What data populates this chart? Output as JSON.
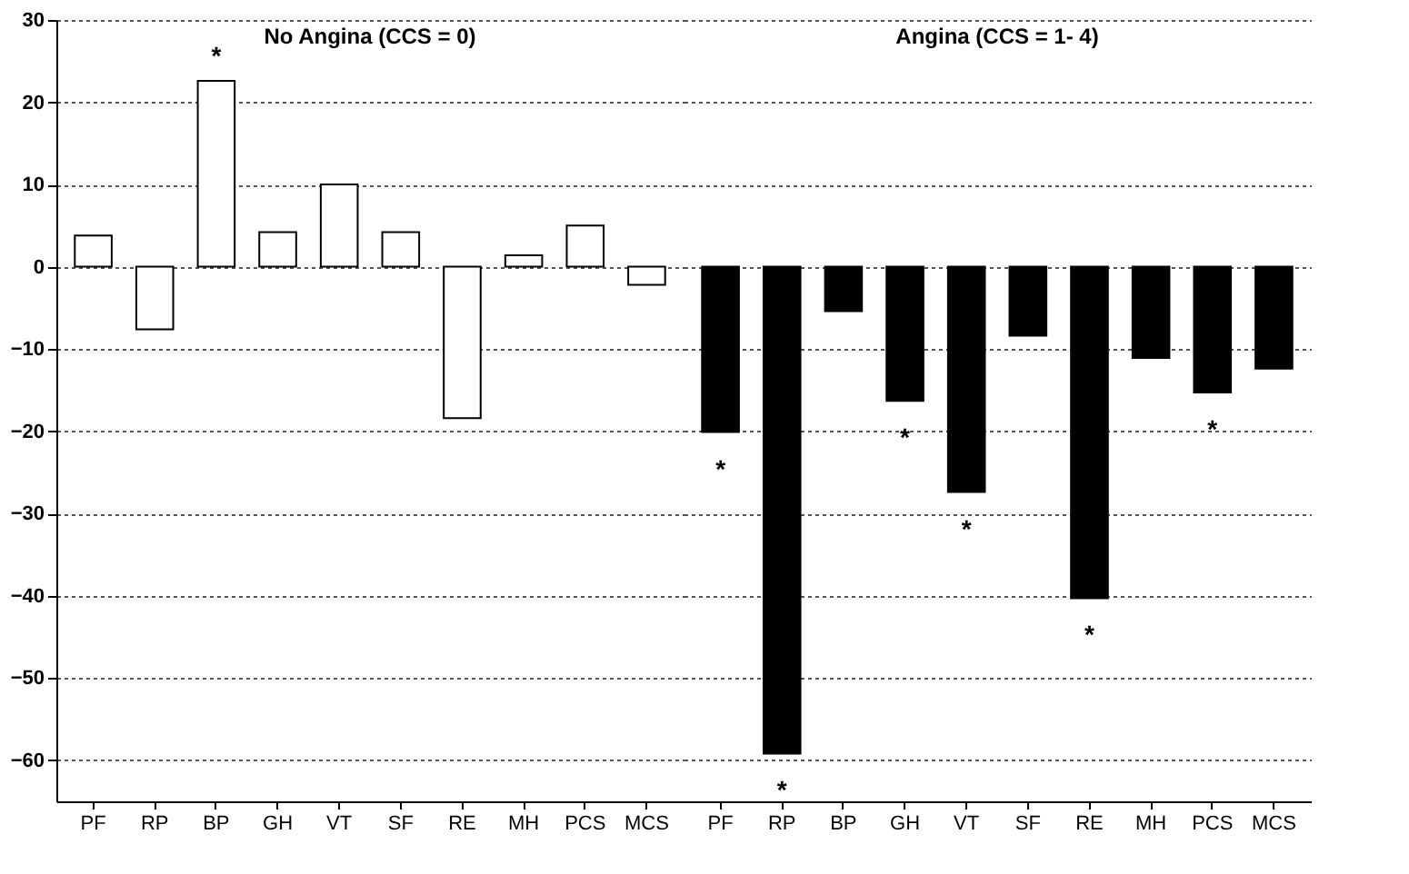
{
  "chart_data": [
    {
      "type": "bar",
      "title": "No Angina (CCS = 0)",
      "categories": [
        "PF",
        "RP",
        "BP",
        "GH",
        "VT",
        "SF",
        "RE",
        "MH",
        "PCS",
        "MCS"
      ],
      "series": [
        {
          "color": "#ffffff",
          "values": [
            3.8,
            -7.6,
            22.6,
            4.2,
            10,
            4.2,
            -18.4,
            1.4,
            5,
            -2.2
          ]
        }
      ],
      "ylim": [
        -65,
        30
      ],
      "yticks": [
        -60,
        -50,
        -40,
        -30,
        -20,
        -10,
        0,
        10,
        20,
        30
      ],
      "grid": "y",
      "annotations": [
        {
          "text": "*",
          "x": "BP",
          "y": 22.6
        }
      ]
    },
    {
      "type": "bar",
      "title": "Angina (CCS = 1- 4)",
      "categories": [
        "PF",
        "RP",
        "BP",
        "GH",
        "VT",
        "SF",
        "RE",
        "MH",
        "PCS",
        "MCS"
      ],
      "series": [
        {
          "color": "#000000",
          "values": [
            -20.1,
            -59.2,
            -5.4,
            -16.3,
            -27.4,
            -8.4,
            -40.3,
            -11.1,
            -15.3,
            -12.4
          ]
        }
      ],
      "ylim": [
        -65,
        30
      ],
      "yticks": [
        -60,
        -50,
        -40,
        -30,
        -20,
        -10,
        0,
        10,
        20,
        30
      ],
      "grid": "y",
      "tick_labels": "x",
      "annotations": [
        {
          "text": "*",
          "x": "PF",
          "y": -20.1
        },
        {
          "text": "*",
          "x": "RP",
          "y": -59.2
        },
        {
          "text": "*",
          "x": "GH",
          "y": -16.3
        },
        {
          "text": "*",
          "x": "VT",
          "y": -27.4
        },
        {
          "text": "*",
          "x": "RE",
          "y": -40.3
        },
        {
          "text": "*",
          "x": "PCS",
          "y": -15.3
        }
      ]
    }
  ]
}
